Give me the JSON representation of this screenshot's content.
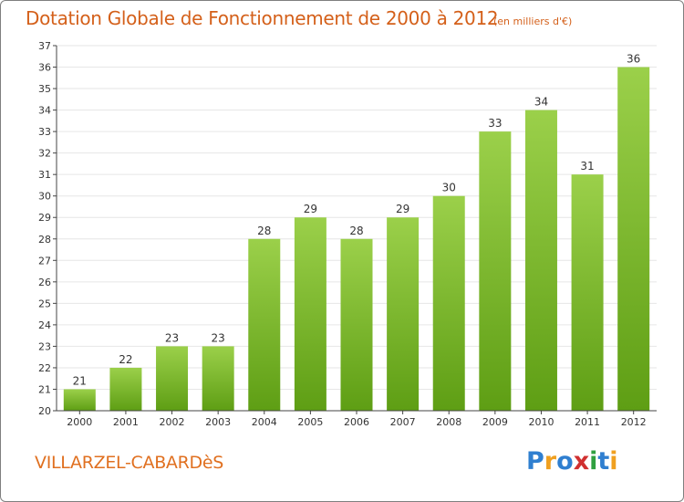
{
  "header": {
    "title": "Dotation Globale de Fonctionnement de 2000 à 2012",
    "subtitle": "(en milliers d'€)"
  },
  "footer": {
    "place_name": "VILLARZEL-CABARDèS",
    "logo_text": "Proxiti",
    "logo_colors": [
      "#2f7fd0",
      "#f0a020",
      "#2f7fd0",
      "#d03030",
      "#30a040",
      "#2f7fd0",
      "#f0a020"
    ]
  },
  "colors": {
    "bar_top": "#9bd04a",
    "bar_bottom": "#5e9e14",
    "axis": "#444444",
    "grid": "#e6e6e6",
    "title": "#d4601a"
  },
  "chart_data": {
    "type": "bar",
    "categories": [
      "2000",
      "2001",
      "2002",
      "2003",
      "2004",
      "2005",
      "2006",
      "2007",
      "2008",
      "2009",
      "2010",
      "2011",
      "2012"
    ],
    "values": [
      21,
      22,
      23,
      23,
      28,
      29,
      28,
      29,
      30,
      33,
      34,
      31,
      36
    ],
    "title": "Dotation Globale de Fonctionnement de 2000 à 2012",
    "subtitle": "(en milliers d'€)",
    "xlabel": "",
    "ylabel": "",
    "ylim": [
      20,
      37
    ],
    "yticks": [
      20,
      21,
      22,
      23,
      24,
      25,
      26,
      27,
      28,
      29,
      30,
      31,
      32,
      33,
      34,
      35,
      36,
      37
    ],
    "grid": true,
    "legend": "none"
  }
}
